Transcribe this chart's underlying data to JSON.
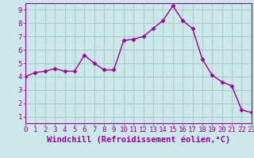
{
  "x": [
    0,
    1,
    2,
    3,
    4,
    5,
    6,
    7,
    8,
    9,
    10,
    11,
    12,
    13,
    14,
    15,
    16,
    17,
    18,
    19,
    20,
    21,
    22,
    23
  ],
  "y": [
    4.0,
    4.3,
    4.4,
    4.6,
    4.4,
    4.4,
    5.6,
    5.0,
    4.5,
    4.5,
    6.7,
    6.8,
    7.0,
    7.6,
    8.2,
    9.3,
    8.2,
    7.6,
    5.3,
    4.1,
    3.6,
    3.3,
    1.5,
    1.3
  ],
  "line_color": "#990099",
  "marker": "D",
  "marker_size": 2.5,
  "bg_color": "#cce8e8",
  "grid_color": "#aacccc",
  "xlabel": "Windchill (Refroidissement éolien,°C)",
  "xlim": [
    0,
    23
  ],
  "ylim": [
    0.5,
    9.5
  ],
  "yticks": [
    1,
    2,
    3,
    4,
    5,
    6,
    7,
    8,
    9
  ],
  "xticks": [
    0,
    1,
    2,
    3,
    4,
    5,
    6,
    7,
    8,
    9,
    10,
    11,
    12,
    13,
    14,
    15,
    16,
    17,
    18,
    19,
    20,
    21,
    22,
    23
  ],
  "xlabel_color": "#990099",
  "tick_color": "#990099",
  "spine_color": "#990099",
  "line_width": 1.0,
  "font_size": 6.5,
  "xlabel_fontsize": 7.5
}
